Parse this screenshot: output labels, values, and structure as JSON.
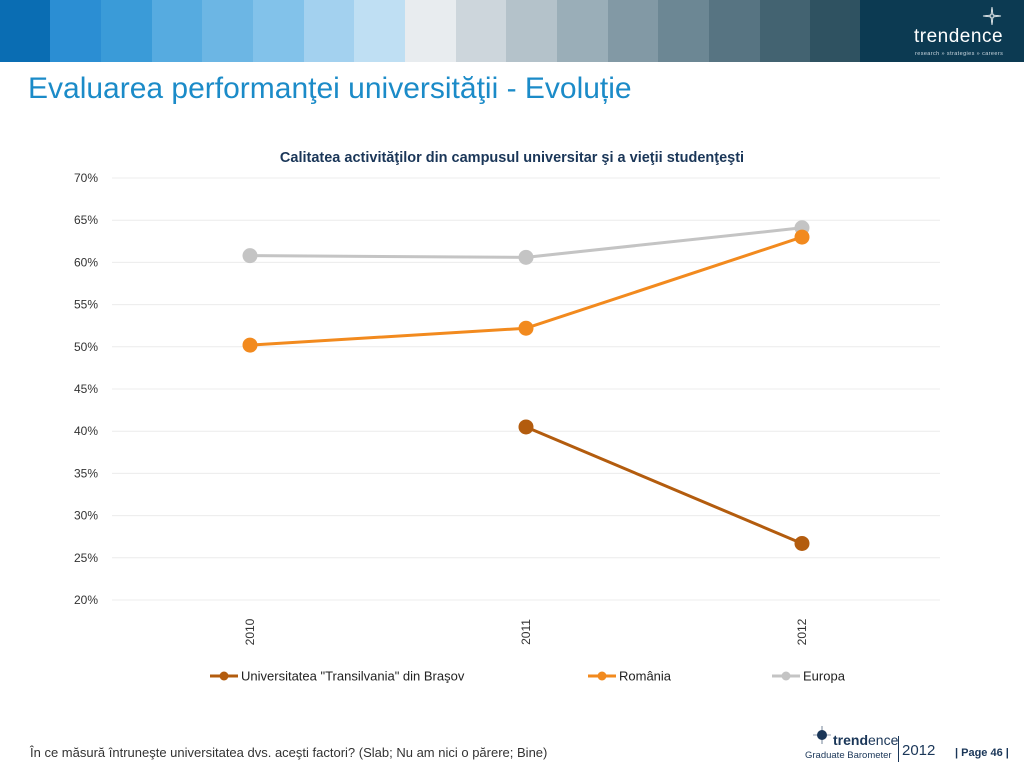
{
  "header": {
    "brand": "trendence",
    "tagline": "research » strategies » careers",
    "band_colors": [
      "#0a6db3",
      "#2b8ed3",
      "#3a9bd8",
      "#56abe0",
      "#6cb6e4",
      "#82c2ea",
      "#a3d1ef",
      "#bfdff3",
      "#e8ecef",
      "#cdd6dc",
      "#b4c2ca",
      "#9aaeb8",
      "#8299a5",
      "#6c8794",
      "#577482",
      "#436371",
      "#2f5261",
      "#1b4356",
      "#0c3a52"
    ]
  },
  "page_title": "Evaluarea performanţei universităţii - Evoluție",
  "chart_data": {
    "type": "line",
    "title": "Calitatea activităţilor din campusul universitar şi a vieţii studenţeşti",
    "categories": [
      "2010",
      "2011",
      "2012"
    ],
    "ylim": [
      0.2,
      0.7
    ],
    "yticks": [
      "20%",
      "25%",
      "30%",
      "35%",
      "40%",
      "45%",
      "50%",
      "55%",
      "60%",
      "65%",
      "70%"
    ],
    "grid": true,
    "legend_position": "bottom",
    "series": [
      {
        "name": "Universitatea \"Transilvania\" din Braşov",
        "color": "#b35c0e",
        "values": [
          null,
          0.405,
          0.267
        ]
      },
      {
        "name": "România",
        "color": "#f28a1e",
        "values": [
          0.502,
          0.522,
          0.63
        ]
      },
      {
        "name": "Europa",
        "color": "#c4c4c4",
        "values": [
          0.608,
          0.606,
          0.641
        ]
      }
    ]
  },
  "footer": {
    "question": "În ce măsură întruneşte universitatea dvs. aceşti factori? (Slab; Nu am nici o părere; Bine)",
    "logo_brand_bold": "trend",
    "logo_brand_rest": "ence",
    "logo_sub": "Graduate Barometer",
    "logo_year": "2012",
    "page_label": "| Page 46 |"
  }
}
